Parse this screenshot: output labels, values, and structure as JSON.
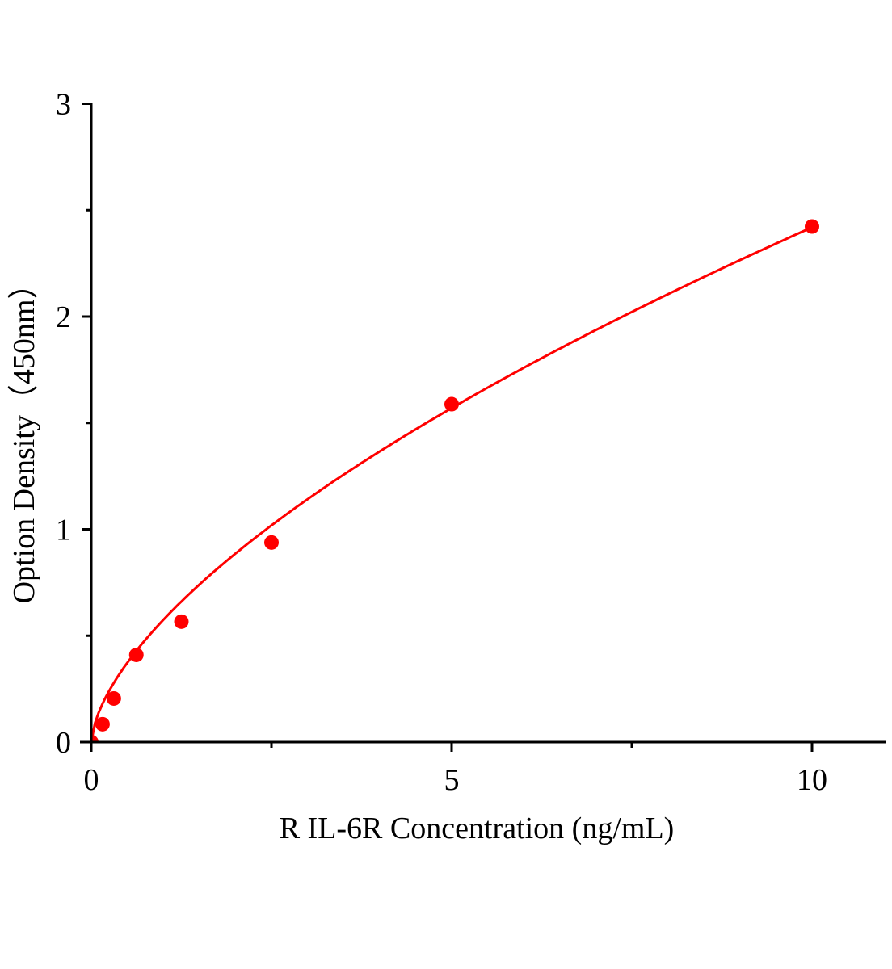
{
  "chart_data": {
    "type": "scatter",
    "title": "",
    "xlabel": "R IL-6R Concentration (ng/mL)",
    "ylabel": "Option Density（450nm）",
    "xlim": [
      0,
      11
    ],
    "ylim": [
      0,
      3
    ],
    "xticks": [
      0,
      5,
      10
    ],
    "xtick_labels": [
      "0",
      "5",
      "10"
    ],
    "x_minor_ticks": [
      2.5,
      7.5
    ],
    "yticks": [
      0,
      1,
      2,
      3
    ],
    "ytick_labels": [
      "0",
      "1",
      "2",
      "3"
    ],
    "y_minor_ticks": [
      0.5,
      1.5,
      2.5
    ],
    "grid": false,
    "legend": "none",
    "series": [
      {
        "x": [
          0,
          0.156,
          0.3125,
          0.625,
          1.25,
          2.5,
          5,
          10
        ],
        "y": [
          0.0,
          0.084,
          0.205,
          0.41,
          0.566,
          0.938,
          1.588,
          2.423
        ],
        "color": "#ff0000",
        "fit_curve": true
      }
    ]
  }
}
